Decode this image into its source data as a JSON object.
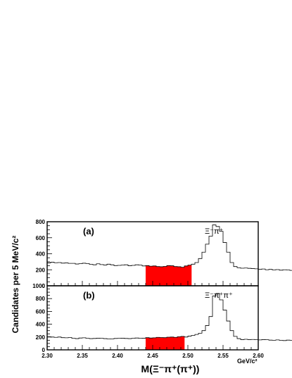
{
  "chart_data": [
    {
      "type": "histogram",
      "panel_label": "(a)",
      "annotation": "Ξ⁻π⁺",
      "ylabel": "Candidates per 5 MeV/c²",
      "xlabel": "M(Ξ⁻π⁺(π⁺))",
      "x_unit": "GeV/c²",
      "xlim": [
        2.3,
        2.6
      ],
      "ylim": [
        0,
        800
      ],
      "yticks": [
        "0",
        "200",
        "400",
        "600",
        "800"
      ],
      "bin_width": 0.005,
      "bin_start": 2.3,
      "signal_range": [
        2.44,
        2.505
      ],
      "signal_color": "#ff0000",
      "values": [
        285,
        295,
        288,
        290,
        283,
        285,
        280,
        280,
        272,
        276,
        282,
        278,
        268,
        262,
        275,
        265,
        260,
        270,
        262,
        252,
        255,
        258,
        262,
        250,
        255,
        262,
        258,
        248,
        252,
        245,
        248,
        240,
        238,
        242,
        252,
        250,
        240,
        238,
        232,
        248,
        258,
        270,
        290,
        340,
        420,
        520,
        620,
        760,
        740,
        680,
        540,
        420,
        290,
        240,
        225,
        220,
        222,
        218,
        215,
        212,
        205,
        210,
        200,
        205,
        198,
        202,
        195,
        200,
        198,
        192,
        195,
        190,
        195,
        188,
        200,
        195,
        190,
        185,
        192,
        188,
        180,
        185,
        178,
        190,
        182,
        175,
        180,
        185,
        170,
        178,
        175,
        170,
        178,
        172,
        168,
        178,
        172,
        170,
        175,
        168
      ]
    },
    {
      "type": "histogram",
      "panel_label": "(b)",
      "annotation": "Ξ⁻π⁺π⁺",
      "ylabel": "",
      "xlabel": "M(Ξ⁻π⁺(π⁺))",
      "x_unit": "GeV/c²",
      "xlim": [
        2.3,
        2.6
      ],
      "ylim": [
        0,
        1000
      ],
      "yticks": [
        "0",
        "200",
        "400",
        "600",
        "800",
        "1000"
      ],
      "xticks": [
        "2.30",
        "2.35",
        "2.40",
        "2.45",
        "2.50",
        "2.55",
        "2.60"
      ],
      "bin_width": 0.005,
      "bin_start": 2.3,
      "signal_range": [
        2.44,
        2.495
      ],
      "signal_color": "#ff0000",
      "values": [
        205,
        200,
        195,
        200,
        190,
        188,
        192,
        180,
        175,
        185,
        188,
        180,
        175,
        178,
        182,
        180,
        175,
        170,
        172,
        178,
        180,
        182,
        178,
        175,
        180,
        185,
        180,
        182,
        190,
        185,
        188,
        195,
        192,
        190,
        198,
        200,
        195,
        205,
        210,
        200,
        215,
        225,
        240,
        260,
        300,
        380,
        520,
        840,
        880,
        780,
        620,
        450,
        300,
        210,
        175,
        160,
        165,
        160,
        162,
        158,
        155,
        160,
        158,
        152,
        150,
        155,
        148,
        145,
        152,
        150,
        148,
        145,
        150,
        142,
        145,
        148,
        150,
        142,
        140,
        145,
        150,
        148,
        155,
        160,
        150,
        145,
        140,
        148,
        150,
        145,
        142,
        140,
        148,
        150,
        145,
        150,
        148,
        150,
        152,
        150
      ]
    }
  ],
  "labels": {
    "ylabel": "Candidates per 5 MeV/c²",
    "xlabel": "M(Ξ⁻π⁺(π⁺))",
    "x_unit": "GeV/c²"
  }
}
